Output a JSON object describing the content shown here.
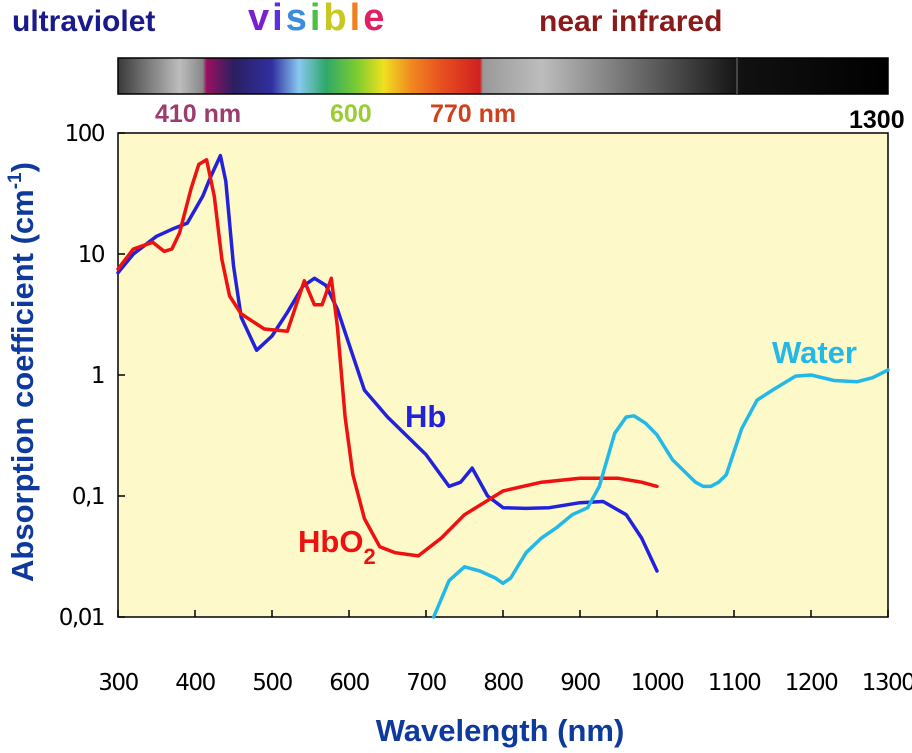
{
  "header": {
    "ultraviolet": "ultraviolet",
    "visible_letters": [
      "v",
      "i",
      "s",
      "i",
      "b",
      "l",
      "e"
    ],
    "near_infrared": "near infrared"
  },
  "spectrum_scale": {
    "label_410": "410 nm",
    "label_600": "600",
    "label_770": "770 nm",
    "label_1300": "1300"
  },
  "colors": {
    "ultraviolet": "#1a1a8c",
    "near_infrared": "#8b1a1a",
    "visible_letters": [
      "#7a1fd0",
      "#5a30e0",
      "#3c8ce0",
      "#4cc040",
      "#c8c820",
      "#f08020",
      "#e02060"
    ],
    "label_410": "#9c3d6e",
    "label_600": "#9acd32",
    "label_770": "#d0401a",
    "plot_bg": "#fdf9c8",
    "hb": "#2222dd",
    "hbo2": "#ee1111",
    "water": "#22b8e8",
    "axis_title": "#0d3a9c"
  },
  "chart_data": {
    "type": "line",
    "xlabel": "Wavelength (nm)",
    "ylabel": "Absorption coefficient (cm",
    "ylabel_sup": "-1",
    "ylabel_close": ")",
    "y_scale": "log",
    "xlim": [
      300,
      1300
    ],
    "ylim": [
      0.01,
      100
    ],
    "x_ticks": [
      "300",
      "400",
      "500",
      "600",
      "700",
      "800",
      "900",
      "1000",
      "1100",
      "1200",
      "1300"
    ],
    "y_ticks": [
      "100",
      "10",
      "1",
      "0,1",
      "0,01"
    ],
    "grid": false,
    "series": [
      {
        "name": "Hb",
        "color": "#2222dd",
        "x": [
          300,
          320,
          350,
          370,
          390,
          410,
          420,
          433,
          440,
          450,
          460,
          480,
          500,
          520,
          540,
          555,
          570,
          585,
          600,
          620,
          650,
          700,
          730,
          745,
          760,
          780,
          800,
          830,
          860,
          900,
          930,
          960,
          980,
          1000
        ],
        "y": [
          7,
          10,
          14,
          16,
          18,
          30,
          43,
          65,
          40,
          8,
          3,
          1.6,
          2.1,
          3.3,
          5.4,
          6.3,
          5.5,
          3.5,
          1.8,
          0.75,
          0.45,
          0.22,
          0.12,
          0.13,
          0.17,
          0.1,
          0.08,
          0.079,
          0.08,
          0.088,
          0.09,
          0.07,
          0.045,
          0.024
        ]
      },
      {
        "name": "HbO2",
        "name_base": "HbO",
        "name_sub": "2",
        "color": "#ee1111",
        "x": [
          300,
          320,
          345,
          360,
          370,
          380,
          395,
          405,
          415,
          425,
          435,
          445,
          460,
          490,
          520,
          542,
          555,
          565,
          577,
          585,
          595,
          605,
          620,
          640,
          660,
          690,
          720,
          750,
          800,
          850,
          900,
          950,
          980,
          1000
        ],
        "y": [
          7.5,
          11,
          12.5,
          10.5,
          11,
          15,
          35,
          55,
          60,
          30,
          9,
          4.5,
          3.2,
          2.4,
          2.3,
          6,
          3.8,
          3.8,
          6.3,
          2.5,
          0.45,
          0.15,
          0.065,
          0.038,
          0.034,
          0.032,
          0.045,
          0.07,
          0.11,
          0.13,
          0.14,
          0.14,
          0.13,
          0.12
        ]
      },
      {
        "name": "Water",
        "color": "#22b8e8",
        "x": [
          710,
          730,
          750,
          770,
          790,
          800,
          810,
          830,
          850,
          870,
          890,
          910,
          925,
          945,
          960,
          970,
          985,
          1000,
          1020,
          1050,
          1060,
          1070,
          1080,
          1090,
          1110,
          1130,
          1150,
          1180,
          1200,
          1230,
          1260,
          1280,
          1300
        ],
        "y": [
          0.01,
          0.02,
          0.026,
          0.024,
          0.021,
          0.019,
          0.021,
          0.034,
          0.045,
          0.055,
          0.07,
          0.08,
          0.12,
          0.33,
          0.45,
          0.46,
          0.4,
          0.32,
          0.2,
          0.13,
          0.12,
          0.12,
          0.13,
          0.15,
          0.36,
          0.62,
          0.75,
          0.98,
          1.0,
          0.9,
          0.88,
          0.95,
          1.1
        ]
      }
    ]
  }
}
